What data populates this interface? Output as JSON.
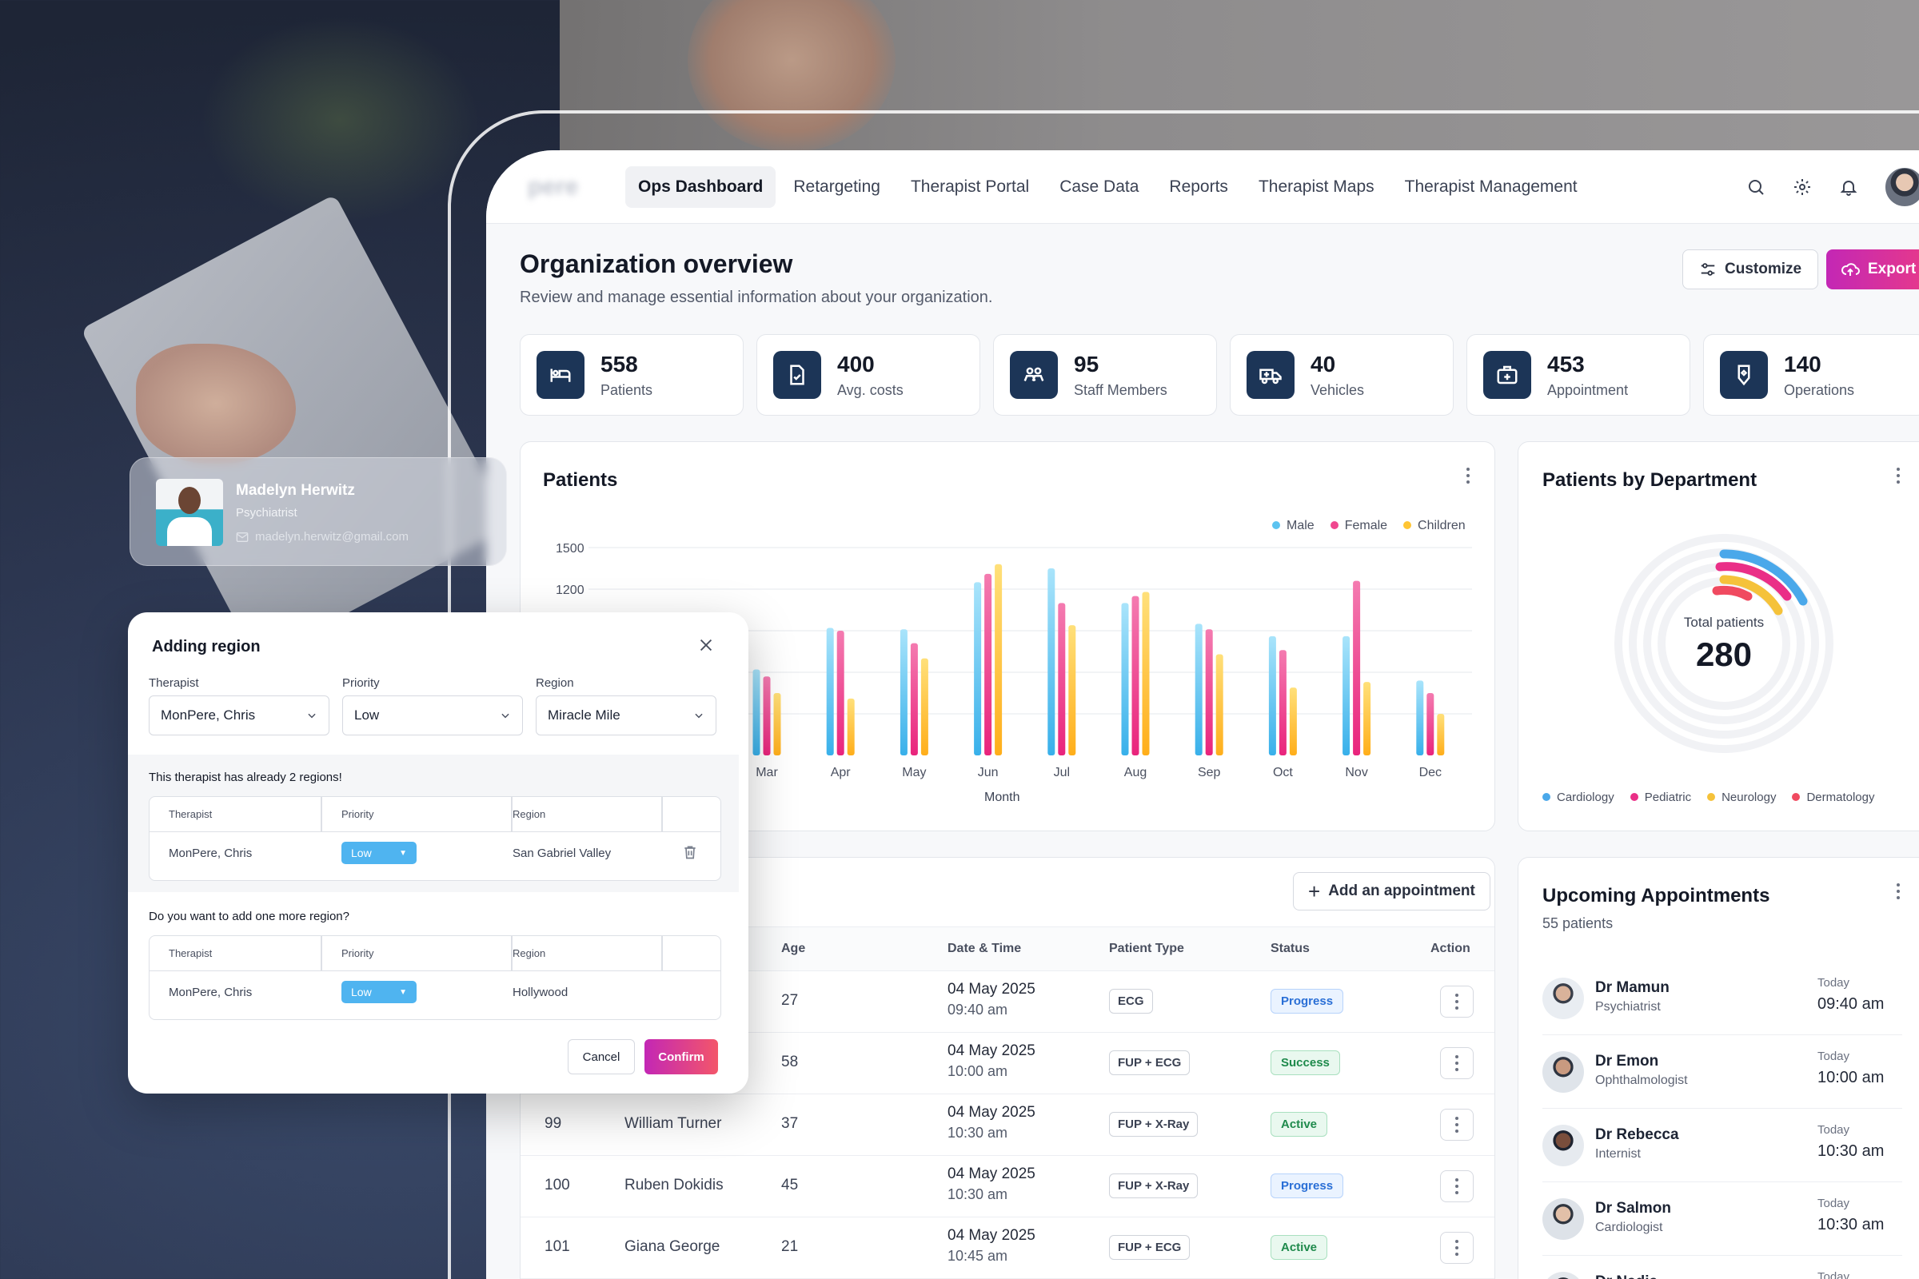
{
  "nav": {
    "logo": "pere",
    "tabs": [
      "Ops Dashboard",
      "Retargeting",
      "Therapist Portal",
      "Case Data",
      "Reports",
      "Therapist Maps",
      "Therapist Management"
    ]
  },
  "header": {
    "title": "Organization overview",
    "subtitle": "Review and manage essential information about your organization.",
    "customize_label": "Customize",
    "export_label": "Export"
  },
  "stats": [
    {
      "value": "558",
      "label": "Patients",
      "icon": "bed-icon"
    },
    {
      "value": "400",
      "label": "Avg. costs",
      "icon": "document-cost-icon"
    },
    {
      "value": "95",
      "label": "Staff Members",
      "icon": "staff-icon"
    },
    {
      "value": "40",
      "label": "Vehicles",
      "icon": "ambulance-icon"
    },
    {
      "value": "453",
      "label": "Appointment",
      "icon": "medical-kit-icon"
    },
    {
      "value": "140",
      "label": "Operations",
      "icon": "hand-heart-icon"
    }
  ],
  "patients_chart": {
    "title": "Patients",
    "xlabel": "Month",
    "legend": [
      "Male",
      "Female",
      "Children"
    ]
  },
  "chart_data": [
    {
      "type": "bar",
      "title": "Patients",
      "xlabel": "Month",
      "ylabel": "",
      "ylim": [
        0,
        1500
      ],
      "yticks_visible": [
        1500,
        1200
      ],
      "legend_position": "top-right",
      "colors": {
        "Male": "#5cc3f0",
        "Female": "#f0478f",
        "Children": "#ffc533"
      },
      "categories": [
        "Mar",
        "Apr",
        "May",
        "Jun",
        "Jul",
        "Aug",
        "Sep",
        "Oct",
        "Nov",
        "Dec"
      ],
      "series": [
        {
          "name": "Male",
          "values": [
            620,
            920,
            910,
            1250,
            1350,
            1100,
            950,
            860,
            860,
            540
          ]
        },
        {
          "name": "Female",
          "values": [
            570,
            900,
            810,
            1310,
            1100,
            1150,
            910,
            760,
            1260,
            450
          ]
        },
        {
          "name": "Children",
          "values": [
            450,
            410,
            700,
            1380,
            940,
            1180,
            730,
            490,
            530,
            300
          ]
        }
      ]
    },
    {
      "type": "pie",
      "title": "Patients by Department",
      "center_label": "Total patients",
      "center_value": "280",
      "categories": [
        "Cardiology",
        "Pediatric",
        "Neurology",
        "Dermatology"
      ],
      "colors": [
        "#4aa8ea",
        "#ea2f87",
        "#f5c23a",
        "#f04a60"
      ]
    }
  ],
  "dept": {
    "title": "Patients by Department",
    "total_label": "Total patients",
    "total_value": "280",
    "legend": [
      "Cardiology",
      "Pediatric",
      "Neurology",
      "Dermatology"
    ]
  },
  "table": {
    "add_label": "Add an appointment",
    "headers": {
      "age": "Age",
      "datetime": "Date & Time",
      "ptype": "Patient Type",
      "status": "Status",
      "action": "Action"
    },
    "rows": [
      {
        "id": "",
        "name": "",
        "age": "27",
        "date": "04 May 2025",
        "time": "09:40 am",
        "ptype": "ECG",
        "status": "Progress"
      },
      {
        "id": "",
        "name": "",
        "age": "58",
        "date": "04 May 2025",
        "time": "10:00 am",
        "ptype": "FUP + ECG",
        "status": "Success"
      },
      {
        "id": "99",
        "name": "William Turner",
        "age": "37",
        "date": "04 May 2025",
        "time": "10:30 am",
        "ptype": "FUP + X-Ray",
        "status": "Active"
      },
      {
        "id": "100",
        "name": "Ruben Dokidis",
        "age": "45",
        "date": "04 May 2025",
        "time": "10:30 am",
        "ptype": "FUP + X-Ray",
        "status": "Progress"
      },
      {
        "id": "101",
        "name": "Giana George",
        "age": "21",
        "date": "04 May 2025",
        "time": "10:45 am",
        "ptype": "FUP + ECG",
        "status": "Active"
      }
    ]
  },
  "appointments": {
    "title": "Upcoming Appointments",
    "subtitle": "55 patients",
    "items": [
      {
        "name": "Dr Mamun",
        "role": "Psychiatrist",
        "day": "Today",
        "time": "09:40 am"
      },
      {
        "name": "Dr Emon",
        "role": "Ophthalmologist",
        "day": "Today",
        "time": "10:00 am"
      },
      {
        "name": "Dr Rebecca",
        "role": "Internist",
        "day": "Today",
        "time": "10:30 am"
      },
      {
        "name": "Dr Salmon",
        "role": "Cardiologist",
        "day": "Today",
        "time": "10:30 am"
      },
      {
        "name": "Dr Nadia",
        "role": "",
        "day": "Today",
        "time": ""
      }
    ]
  },
  "profile": {
    "name": "Madelyn Herwitz",
    "role": "Psychiatrist",
    "email": "madelyn.herwitz@gmail.com"
  },
  "modal": {
    "title": "Adding region",
    "fields": {
      "therapist_label": "Therapist",
      "therapist_value": "MonPere, Chris",
      "priority_label": "Priority",
      "priority_value": "Low",
      "region_label": "Region",
      "region_value": "Miracle Mile"
    },
    "existing_note": "This therapist has already 2 regions!",
    "existing_headers": [
      "Therapist",
      "Priority",
      "Region"
    ],
    "existing_row": {
      "therapist": "MonPere, Chris",
      "priority": "Low",
      "region": "San Gabriel Valley"
    },
    "add_note": "Do you want to add one more region?",
    "new_headers": [
      "Therapist",
      "Priority",
      "Region"
    ],
    "new_row": {
      "therapist": "MonPere, Chris",
      "priority": "Low",
      "region": "Hollywood"
    },
    "cancel_label": "Cancel",
    "confirm_label": "Confirm"
  }
}
